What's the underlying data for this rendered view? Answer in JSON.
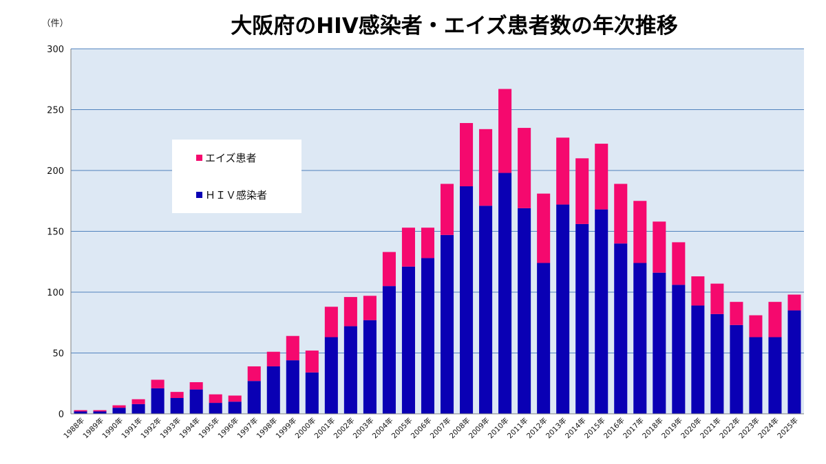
{
  "unit_label": "（件）",
  "chart_data": {
    "type": "bar",
    "stacked": true,
    "title": "大阪府のHIV感染者・エイズ患者数の年次推移",
    "xlabel": "",
    "ylabel": "",
    "ylim": [
      0,
      300
    ],
    "yticks": [
      0,
      50,
      100,
      150,
      200,
      250,
      300
    ],
    "grid": true,
    "legend_position": "upper-left (inside plot)",
    "plot_background": "#dde8f4",
    "grid_color": "#4f81bd",
    "categories": [
      "1988年",
      "1989年",
      "1990年",
      "1991年",
      "1992年",
      "1993年",
      "1994年",
      "1995年",
      "1996年",
      "1997年",
      "1998年",
      "1999年",
      "2000年",
      "2001年",
      "2002年",
      "2003年",
      "2004年",
      "2005年",
      "2006年",
      "2007年",
      "2008年",
      "2009年",
      "2010年",
      "2011年",
      "2012年",
      "2013年",
      "2014年",
      "2015年",
      "2016年",
      "2017年",
      "2018年",
      "2019年",
      "2020年",
      "2021年",
      "2022年",
      "2023年",
      "2024年",
      "2025年"
    ],
    "series": [
      {
        "name": "ＨＩＶ感染者",
        "color": "#0a00b4",
        "values": [
          2,
          2,
          5,
          8,
          21,
          13,
          20,
          9,
          10,
          27,
          39,
          44,
          34,
          63,
          72,
          77,
          105,
          121,
          128,
          147,
          187,
          171,
          198,
          169,
          124,
          172,
          156,
          168,
          140,
          124,
          116,
          106,
          89,
          82,
          73,
          63,
          63,
          85
        ]
      },
      {
        "name": "エイズ患者",
        "color": "#f5096e",
        "values": [
          1,
          1,
          2,
          4,
          7,
          5,
          6,
          7,
          5,
          12,
          12,
          20,
          18,
          25,
          24,
          20,
          28,
          32,
          25,
          42,
          52,
          63,
          69,
          66,
          57,
          55,
          54,
          54,
          49,
          51,
          42,
          35,
          24,
          25,
          19,
          18,
          29,
          13
        ]
      }
    ],
    "legend_order": [
      "エイズ患者",
      "ＨＩＶ感染者"
    ]
  }
}
